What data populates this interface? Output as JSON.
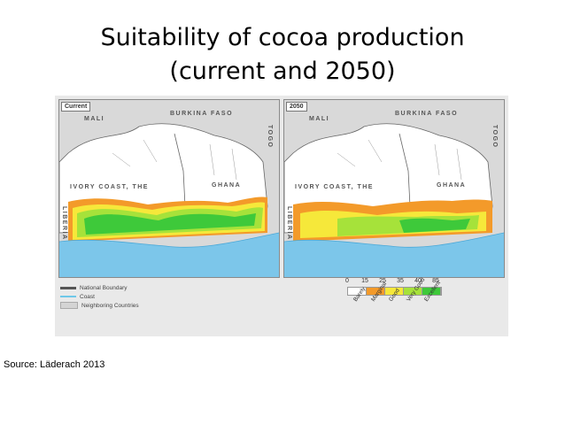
{
  "slide": {
    "title_line1": "Suitability of cocoa production",
    "title_line2": "(current and 2050)",
    "source": "Source: Läderach 2013"
  },
  "maps": [
    {
      "tag": "Current",
      "labels": {
        "mali": "MALI",
        "burkina": "BURKINA FASO",
        "ivory": "IVORY COAST, THE",
        "ghana": "GHANA",
        "togo": "TOGO",
        "liberia": "LIBERIA"
      }
    },
    {
      "tag": "2050",
      "labels": {
        "mali": "MALI",
        "burkina": "BURKINA FASO",
        "ivory": "IVORY COAST, THE",
        "ghana": "GHANA",
        "togo": "TOGO",
        "liberia": "LIBERIA"
      }
    }
  ],
  "legend": {
    "items": [
      {
        "label": "National Boundary",
        "color": "#555555"
      },
      {
        "label": "Coast",
        "color": "#6fc8e8"
      },
      {
        "label": "Neighboring Countries",
        "color": "#d4d4d4"
      }
    ]
  },
  "suitability_scale": {
    "ticks": [
      "0",
      "15",
      "25",
      "35",
      "40",
      "85"
    ],
    "classes": [
      {
        "label": "Barely",
        "color": "#ffffff"
      },
      {
        "label": "Marginal",
        "color": "#f39a2a"
      },
      {
        "label": "Good",
        "color": "#f6e83a"
      },
      {
        "label": "Very Good",
        "color": "#a6e23a"
      },
      {
        "label": "Excellent",
        "color": "#3ec93a"
      }
    ]
  },
  "colors": {
    "sea": "#7cc6ea",
    "land": "#ffffff",
    "neighbor": "#d9d9d9"
  }
}
